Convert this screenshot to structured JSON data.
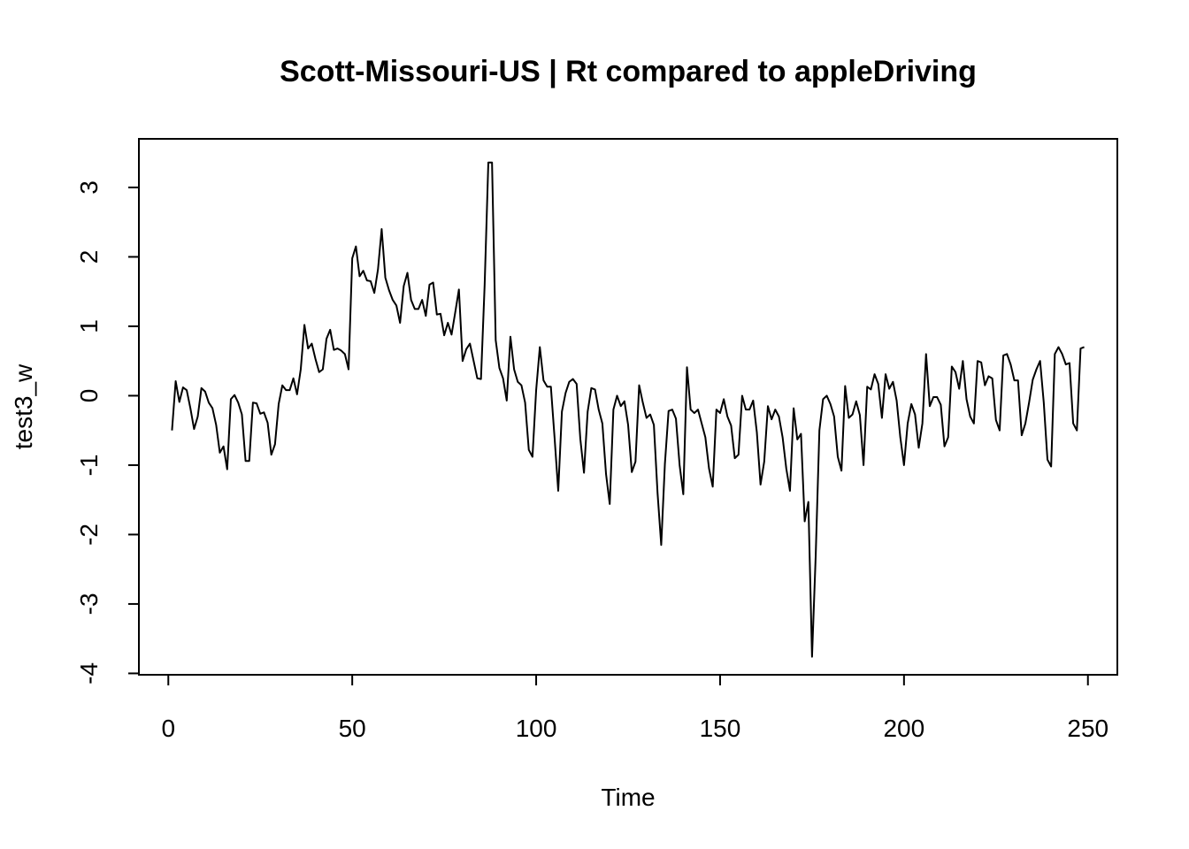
{
  "chart_data": {
    "type": "line",
    "title": "Scott-Missouri-US | Rt compared to appleDriving",
    "xlabel": "Time",
    "ylabel": "test3_w",
    "xlim": [
      -8,
      258
    ],
    "ylim": [
      -4.02,
      3.7
    ],
    "x_ticks": [
      0,
      50,
      100,
      150,
      200,
      250
    ],
    "y_ticks": [
      -4,
      -3,
      -2,
      -1,
      0,
      1,
      2,
      3
    ],
    "x_tick_labels": [
      "0",
      "50",
      "100",
      "150",
      "200",
      "250"
    ],
    "y_tick_labels": [
      "-4",
      "-3",
      "-2",
      "-1",
      "0",
      "1",
      "2",
      "3"
    ],
    "grid": false,
    "x_start": 1,
    "series": [
      {
        "values": [
          -0.5,
          0.21,
          -0.09,
          0.12,
          0.08,
          -0.18,
          -0.48,
          -0.3,
          0.11,
          0.06,
          -0.1,
          -0.18,
          -0.42,
          -0.82,
          -0.73,
          -1.06,
          -0.05,
          0.01,
          -0.1,
          -0.27,
          -0.94,
          -0.94,
          -0.1,
          -0.11,
          -0.26,
          -0.24,
          -0.39,
          -0.85,
          -0.7,
          -0.12,
          0.15,
          0.08,
          0.08,
          0.25,
          0.02,
          0.38,
          1.02,
          0.68,
          0.75,
          0.53,
          0.34,
          0.38,
          0.82,
          0.95,
          0.66,
          0.68,
          0.65,
          0.6,
          0.38,
          1.98,
          2.15,
          1.72,
          1.8,
          1.66,
          1.65,
          1.48,
          1.82,
          2.4,
          1.7,
          1.52,
          1.38,
          1.3,
          1.05,
          1.58,
          1.77,
          1.38,
          1.25,
          1.25,
          1.38,
          1.15,
          1.6,
          1.63,
          1.17,
          1.18,
          0.87,
          1.05,
          0.88,
          1.2,
          1.53,
          0.5,
          0.67,
          0.75,
          0.5,
          0.25,
          0.24,
          1.6,
          3.36,
          3.36,
          0.8,
          0.4,
          0.25,
          -0.07,
          0.85,
          0.38,
          0.2,
          0.15,
          -0.1,
          -0.78,
          -0.88,
          0.08,
          0.7,
          0.22,
          0.13,
          0.13,
          -0.6,
          -1.37,
          -0.23,
          0.04,
          0.2,
          0.24,
          0.17,
          -0.62,
          -1.11,
          -0.23,
          0.11,
          0.09,
          -0.2,
          -0.4,
          -1.13,
          -1.56,
          -0.2,
          0.0,
          -0.15,
          -0.08,
          -0.42,
          -1.1,
          -0.95,
          0.15,
          -0.1,
          -0.32,
          -0.27,
          -0.42,
          -1.4,
          -2.15,
          -0.98,
          -0.22,
          -0.2,
          -0.33,
          -1.0,
          -1.42,
          0.41,
          -0.2,
          -0.25,
          -0.2,
          -0.4,
          -0.6,
          -1.05,
          -1.31,
          -0.2,
          -0.25,
          -0.05,
          -0.3,
          -0.43,
          -0.9,
          -0.85,
          0.0,
          -0.2,
          -0.2,
          -0.07,
          -0.53,
          -1.28,
          -0.95,
          -0.15,
          -0.34,
          -0.2,
          -0.3,
          -0.6,
          -1.05,
          -1.37,
          -0.18,
          -0.63,
          -0.55,
          -1.81,
          -1.53,
          -3.76,
          -2.3,
          -0.5,
          -0.05,
          0.0,
          -0.12,
          -0.3,
          -0.88,
          -1.08,
          0.14,
          -0.32,
          -0.27,
          -0.08,
          -0.28,
          -1.0,
          0.13,
          0.09,
          0.31,
          0.17,
          -0.32,
          0.31,
          0.1,
          0.2,
          -0.07,
          -0.6,
          -1.0,
          -0.4,
          -0.12,
          -0.27,
          -0.75,
          -0.4,
          0.6,
          -0.15,
          -0.02,
          -0.02,
          -0.13,
          -0.73,
          -0.6,
          0.42,
          0.34,
          0.1,
          0.5,
          -0.05,
          -0.3,
          -0.4,
          0.5,
          0.48,
          0.15,
          0.28,
          0.25,
          -0.35,
          -0.5,
          0.58,
          0.6,
          0.45,
          0.22,
          0.22,
          -0.57,
          -0.4,
          -0.1,
          0.23,
          0.38,
          0.5,
          -0.1,
          -0.92,
          -1.02,
          0.6,
          0.7,
          0.6,
          0.45,
          0.47,
          -0.4,
          -0.5,
          0.68,
          0.7
        ]
      }
    ]
  }
}
